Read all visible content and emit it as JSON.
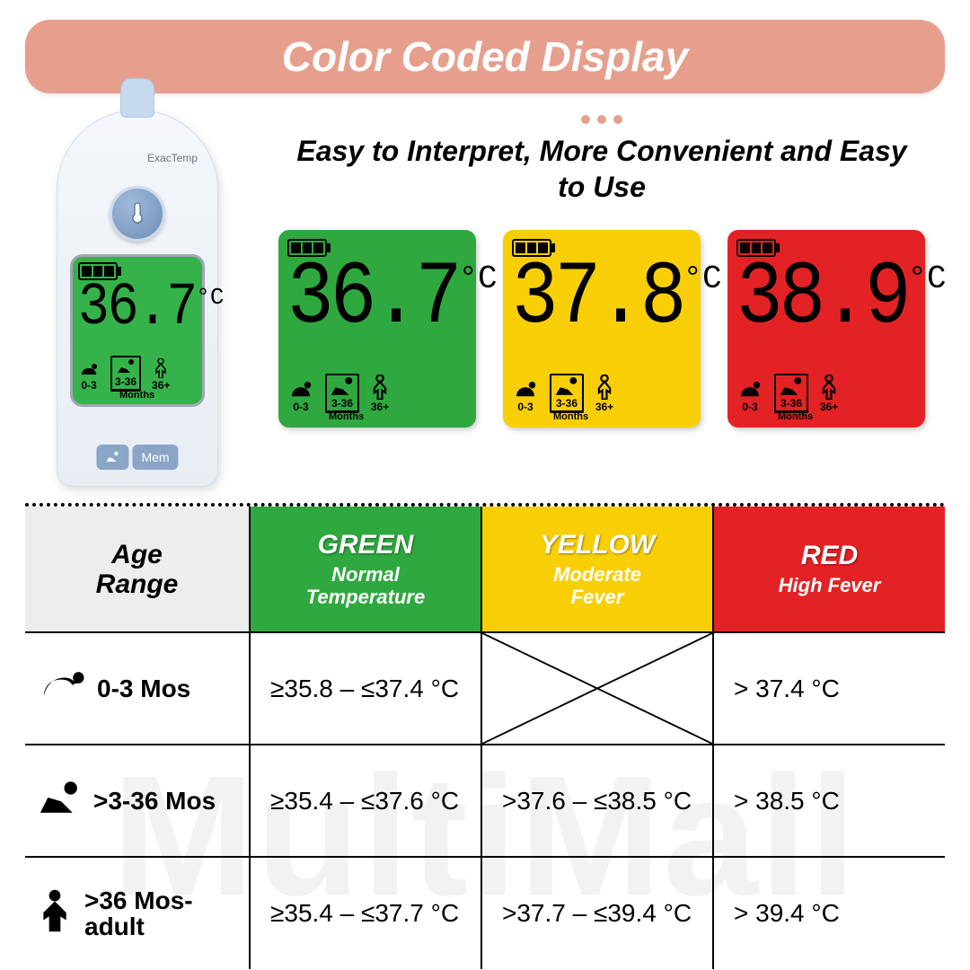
{
  "watermark_text": "MultiMall",
  "title": "Color Coded Display",
  "subtitle": "Easy to Interpret, More Convenient and Easy to Use",
  "colors": {
    "title_pill": "#e79f8d",
    "green": "#2fa83f",
    "green_bright": "#35b34a",
    "yellow": "#f8cf06",
    "red": "#e32225",
    "grey_header": "#ededed",
    "dot": "#e79f8d"
  },
  "thermometer": {
    "brand": "ExacTemp",
    "screen_temp": "36.7",
    "screen_unit": "°C",
    "btn_mem": "Mem",
    "age_labels": [
      "0-3",
      "3-36",
      "36+"
    ],
    "months_label": "Months"
  },
  "tiles": [
    {
      "color": "#2fa83f",
      "temp": "36.7",
      "unit": "°C",
      "age_selected": 1
    },
    {
      "color": "#f8cf06",
      "temp": "37.8",
      "unit": "°C",
      "age_selected": 1
    },
    {
      "color": "#e32225",
      "temp": "38.9",
      "unit": "°C",
      "age_selected": 1
    }
  ],
  "tile_age_labels": [
    "0-3",
    "3-36",
    "36+"
  ],
  "tile_months_label": "Months",
  "table": {
    "headers": {
      "age": "Age Range",
      "green": {
        "name": "GREEN",
        "desc": "Normal Temperature",
        "bg": "#2fa83f"
      },
      "yellow": {
        "name": "YELLOW",
        "desc": "Moderate Fever",
        "bg": "#f8cf06"
      },
      "red": {
        "name": "RED",
        "desc": "High Fever",
        "bg": "#e32225"
      }
    },
    "rows": [
      {
        "icon": "baby",
        "age": "0-3 Mos",
        "green": "≥35.8 – ≤37.4 °C",
        "yellow": "CROSS",
        "red": "> 37.4 °C"
      },
      {
        "icon": "crawl",
        "age": ">3-36 Mos",
        "green": "≥35.4 – ≤37.6 °C",
        "yellow": ">37.6 – ≤38.5 °C",
        "red": "> 38.5 °C"
      },
      {
        "icon": "person",
        "age": ">36 Mos-adult",
        "green": "≥35.4 – ≤37.7 °C",
        "yellow": ">37.7 – ≤39.4 °C",
        "red": "> 39.4 °C"
      }
    ]
  }
}
